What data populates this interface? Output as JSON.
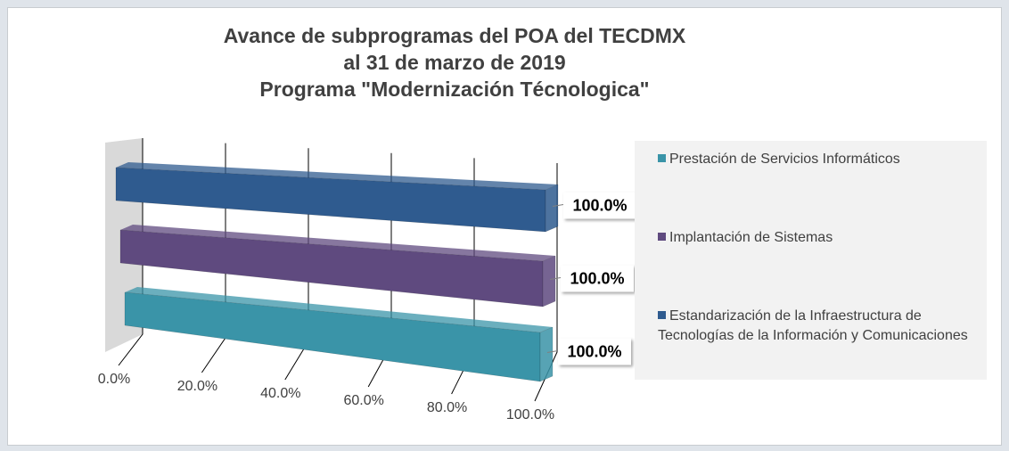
{
  "chart_data": {
    "type": "bar",
    "orientation": "horizontal",
    "title": [
      "Avance de subprogramas del POA del TECDMX",
      "al 31 de marzo de 2019",
      "Programa \"Modernización Técnologica\""
    ],
    "series": [
      {
        "name": "Prestación de Servicios Informáticos",
        "color": "#3a94a8",
        "values": [
          100
        ],
        "value_labels": [
          "100.0%"
        ]
      },
      {
        "name": "Implantación de Sistemas",
        "color": "#5f4a7f",
        "values": [
          100
        ],
        "value_labels": [
          "100.0%"
        ]
      },
      {
        "name": "Estandarización de la Infraestructura de Tecnologías de la Información y Comunicaciones",
        "color": "#2f5b8f",
        "values": [
          100
        ],
        "value_labels": [
          "100.0%"
        ]
      }
    ],
    "xlim": [
      0,
      100
    ],
    "xticks": [
      {
        "value": 0,
        "label": "0.0%"
      },
      {
        "value": 20,
        "label": "20.0%"
      },
      {
        "value": 40,
        "label": "40.0%"
      },
      {
        "value": 60,
        "label": "60.0%"
      },
      {
        "value": 80,
        "label": "80.0%"
      },
      {
        "value": 100,
        "label": "100.0%"
      }
    ],
    "grid": true,
    "legend": "right"
  }
}
